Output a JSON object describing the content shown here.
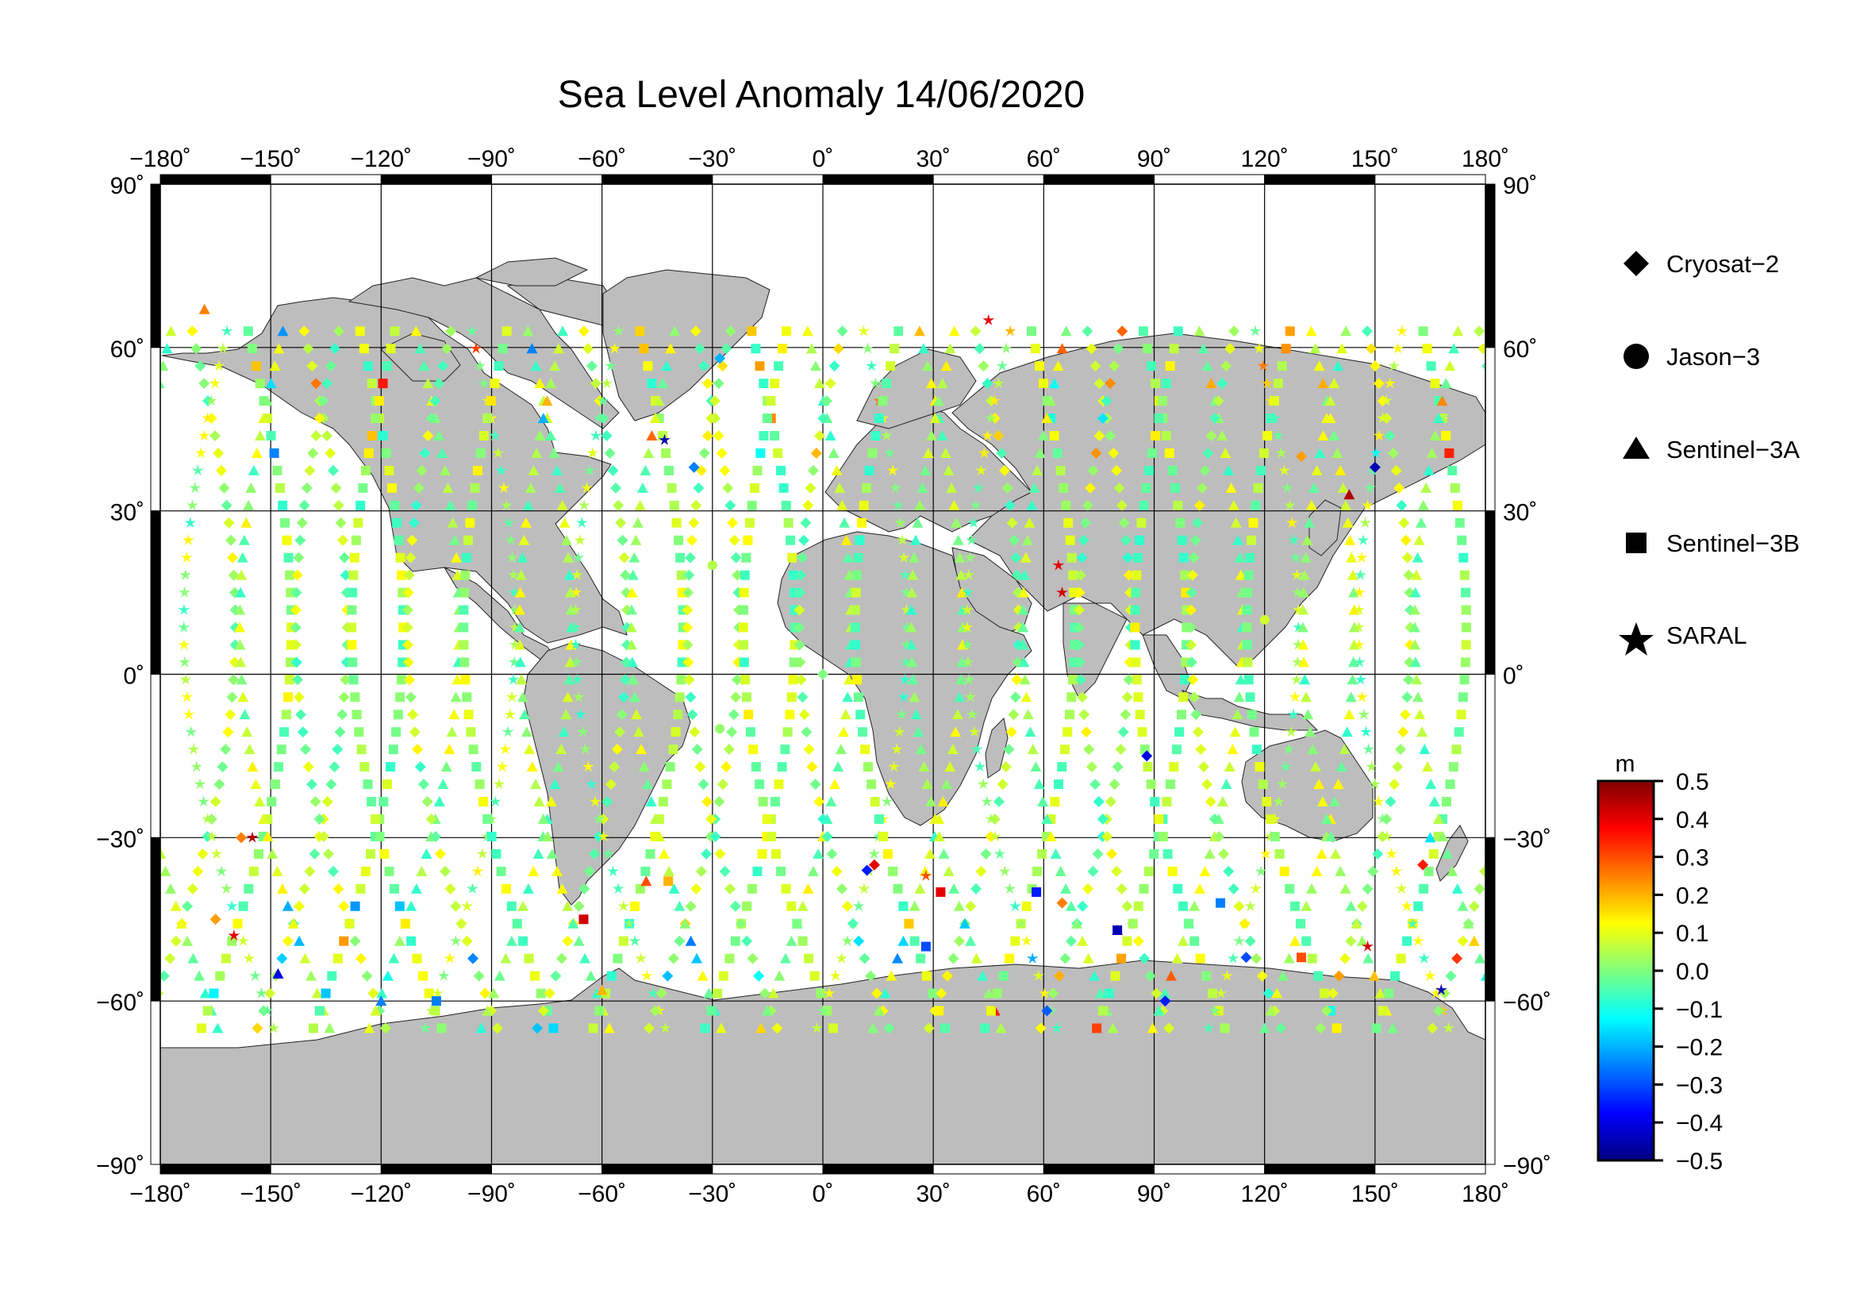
{
  "title": "Sea Level Anomaly 14/06/2020",
  "colors": {
    "land": "#bdbdbd",
    "ocean": "#ffffff",
    "grid": "#000000",
    "frame": "#000000",
    "colorscale": [
      "#00007f",
      "#0000ff",
      "#007fff",
      "#00ffff",
      "#7fff7f",
      "#ffff00",
      "#ff7f00",
      "#ff0000",
      "#7f0000"
    ]
  },
  "map": {
    "lon_ticks": [
      "−180˚",
      "−150˚",
      "−120˚",
      "−90˚",
      "−60˚",
      "−30˚",
      "0˚",
      "30˚",
      "60˚",
      "90˚",
      "120˚",
      "150˚",
      "180˚"
    ],
    "lon_values": [
      -180,
      -150,
      -120,
      -90,
      -60,
      -30,
      0,
      30,
      60,
      90,
      120,
      150,
      180
    ],
    "lat_ticks_left": [
      "90˚",
      "60˚",
      "30˚",
      "0˚",
      "−30˚",
      "−60˚",
      "−90˚"
    ],
    "lat_ticks_right": [
      "90˚",
      "60˚",
      "30˚",
      "0˚",
      "−30˚",
      "−60˚",
      "−90˚"
    ],
    "lat_values": [
      90,
      60,
      30,
      0,
      -30,
      -60,
      -90
    ]
  },
  "legend": {
    "items": [
      {
        "name": "Cryosat−2",
        "icon": "diamond-icon"
      },
      {
        "name": "Jason−3",
        "icon": "circle-icon"
      },
      {
        "name": "Sentinel−3A",
        "icon": "triangle-icon"
      },
      {
        "name": "Sentinel−3B",
        "icon": "square-icon"
      },
      {
        "name": "SARAL",
        "icon": "star-icon"
      }
    ]
  },
  "colorbar": {
    "unit": "m",
    "labels": [
      "0.5",
      "0.4",
      "0.3",
      "0.2",
      "0.1",
      "0.0",
      "−0.1",
      "−0.2",
      "−0.3",
      "−0.4",
      "−0.5"
    ],
    "min": -0.5,
    "max": 0.5
  },
  "chart_data": {
    "type": "scatter",
    "title": "Sea Level Anomaly 14/06/2020",
    "xlabel": "",
    "ylabel": "",
    "xlim": [
      -180,
      180
    ],
    "ylim": [
      -90,
      90
    ],
    "value_unit": "m",
    "value_range": [
      -0.5,
      0.5
    ],
    "series": [
      {
        "name": "Cryosat−2",
        "marker": "diamond",
        "points": [
          {
            "lon": -165,
            "lat": -45,
            "v": 0.22
          },
          {
            "lon": -158,
            "lat": -30,
            "v": 0.25
          },
          {
            "lon": -35,
            "lat": 38,
            "v": -0.25
          },
          {
            "lon": -28,
            "lat": 58,
            "v": -0.2
          },
          {
            "lon": 14,
            "lat": -35,
            "v": 0.4
          },
          {
            "lon": 12,
            "lat": -36,
            "v": -0.35
          },
          {
            "lon": 150,
            "lat": 38,
            "v": -0.45
          },
          {
            "lon": 163,
            "lat": -35,
            "v": 0.35
          },
          {
            "lon": 65,
            "lat": -42,
            "v": 0.25
          },
          {
            "lon": 115,
            "lat": -52,
            "v": -0.3
          },
          {
            "lon": 93,
            "lat": -60,
            "v": -0.35
          },
          {
            "lon": 88,
            "lat": -15,
            "v": -0.4
          },
          {
            "lon": 130,
            "lat": 40,
            "v": 0.22
          },
          {
            "lon": 0,
            "lat": 0,
            "v": 0.0
          }
        ]
      },
      {
        "name": "Jason−3",
        "marker": "circle",
        "points": [
          {
            "lon": -30,
            "lat": 20,
            "v": 0.05
          },
          {
            "lon": -28,
            "lat": -10,
            "v": 0.02
          },
          {
            "lon": 120,
            "lat": 10,
            "v": 0.08
          }
        ]
      },
      {
        "name": "Sentinel−3A",
        "marker": "triangle",
        "points": [
          {
            "lon": -148,
            "lat": -55,
            "v": -0.4
          },
          {
            "lon": -168,
            "lat": 67,
            "v": 0.25
          },
          {
            "lon": -48,
            "lat": -38,
            "v": 0.3
          },
          {
            "lon": 80,
            "lat": -47,
            "v": 0.35
          },
          {
            "lon": -60,
            "lat": -58,
            "v": 0.2
          },
          {
            "lon": -120,
            "lat": -60,
            "v": -0.25
          },
          {
            "lon": 143,
            "lat": 33,
            "v": 0.45
          },
          {
            "lon": 165,
            "lat": -30,
            "v": -0.15
          }
        ]
      },
      {
        "name": "Sentinel−3B",
        "marker": "square",
        "points": [
          {
            "lon": -65,
            "lat": -45,
            "v": 0.42
          },
          {
            "lon": -42,
            "lat": -38,
            "v": 0.2
          },
          {
            "lon": 32,
            "lat": -40,
            "v": 0.4
          },
          {
            "lon": 28,
            "lat": -50,
            "v": -0.3
          },
          {
            "lon": 58,
            "lat": -40,
            "v": -0.35
          },
          {
            "lon": 80,
            "lat": -47,
            "v": -0.45
          },
          {
            "lon": 108,
            "lat": -42,
            "v": -0.25
          },
          {
            "lon": 130,
            "lat": -52,
            "v": 0.3
          },
          {
            "lon": -105,
            "lat": -60,
            "v": -0.25
          }
        ]
      },
      {
        "name": "SARAL",
        "marker": "star",
        "points": [
          {
            "lon": -160,
            "lat": -48,
            "v": 0.4
          },
          {
            "lon": -155,
            "lat": -30,
            "v": 0.45
          },
          {
            "lon": -43,
            "lat": 43,
            "v": -0.45
          },
          {
            "lon": 64,
            "lat": 20,
            "v": 0.4
          },
          {
            "lon": 65,
            "lat": 15,
            "v": 0.42
          },
          {
            "lon": 45,
            "lat": 65,
            "v": 0.4
          },
          {
            "lon": 148,
            "lat": -50,
            "v": 0.42
          },
          {
            "lon": 168,
            "lat": -58,
            "v": -0.45
          },
          {
            "lon": 28,
            "lat": -37,
            "v": 0.3
          }
        ]
      }
    ]
  }
}
